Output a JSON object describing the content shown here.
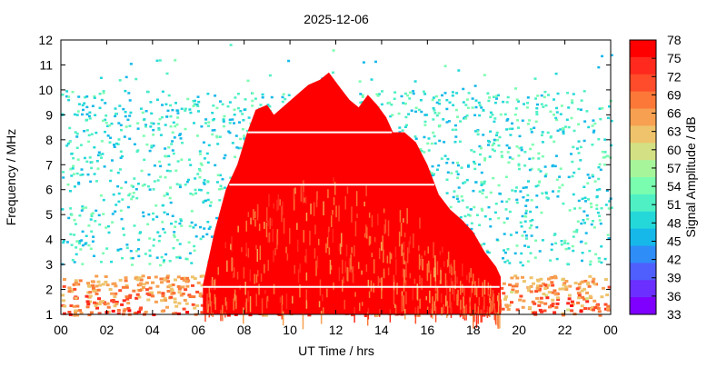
{
  "chart_data": {
    "type": "heatmap",
    "title": "2025-12-06",
    "xlabel": "UT Time / hrs",
    "ylabel": "Frequency / MHz",
    "colorbar_label": "Signal Amplitude / dB",
    "xlim": [
      0,
      24
    ],
    "ylim": [
      1,
      12
    ],
    "x_ticks": [
      "00",
      "02",
      "04",
      "06",
      "08",
      "10",
      "12",
      "14",
      "16",
      "18",
      "20",
      "22",
      "00"
    ],
    "y_ticks": [
      "1",
      "2",
      "3",
      "4",
      "5",
      "6",
      "7",
      "8",
      "9",
      "10",
      "11",
      "12"
    ],
    "colorbar_range": [
      33,
      78
    ],
    "colorbar_ticks": [
      "78",
      "75",
      "72",
      "69",
      "66",
      "63",
      "60",
      "57",
      "54",
      "51",
      "48",
      "45",
      "42",
      "39",
      "36",
      "33"
    ],
    "colorbar_colors": [
      "#ff0000",
      "#ff2a1d",
      "#ff4c2a",
      "#fb7838",
      "#f7a052",
      "#eec36b",
      "#d3e184",
      "#a7f59b",
      "#7bfdb0",
      "#4ff0c4",
      "#24d8d9",
      "#16b8ea",
      "#2f8df7",
      "#4f5ffd",
      "#6b2fff",
      "#7f00ff"
    ],
    "grid": false,
    "intense_region_upper_frequency_MHz": [
      [
        6.2,
        2.2
      ],
      [
        6.7,
        4.3
      ],
      [
        7.2,
        6.0
      ],
      [
        7.7,
        7.0
      ],
      [
        8.1,
        8.2
      ],
      [
        8.5,
        9.2
      ],
      [
        9.0,
        9.4
      ],
      [
        9.3,
        9.0
      ],
      [
        9.8,
        9.4
      ],
      [
        10.3,
        9.8
      ],
      [
        10.8,
        10.2
      ],
      [
        11.3,
        10.4
      ],
      [
        11.7,
        10.7
      ],
      [
        12.1,
        10.2
      ],
      [
        12.6,
        9.6
      ],
      [
        13.0,
        9.3
      ],
      [
        13.4,
        9.8
      ],
      [
        13.8,
        9.4
      ],
      [
        14.2,
        8.9
      ],
      [
        14.5,
        8.3
      ],
      [
        15.0,
        8.3
      ],
      [
        15.5,
        7.9
      ],
      [
        16.0,
        7.0
      ],
      [
        16.5,
        5.8
      ],
      [
        17.0,
        5.2
      ],
      [
        17.5,
        4.8
      ],
      [
        18.0,
        4.3
      ],
      [
        18.5,
        3.5
      ],
      [
        19.0,
        2.9
      ],
      [
        19.2,
        2.5
      ]
    ],
    "background_band_MHz": [
      1.0,
      2.6
    ],
    "scattered_noise_band_MHz": [
      3.0,
      10.0
    ],
    "white_gap_lines_MHz": [
      2.1,
      6.2,
      8.3
    ]
  }
}
